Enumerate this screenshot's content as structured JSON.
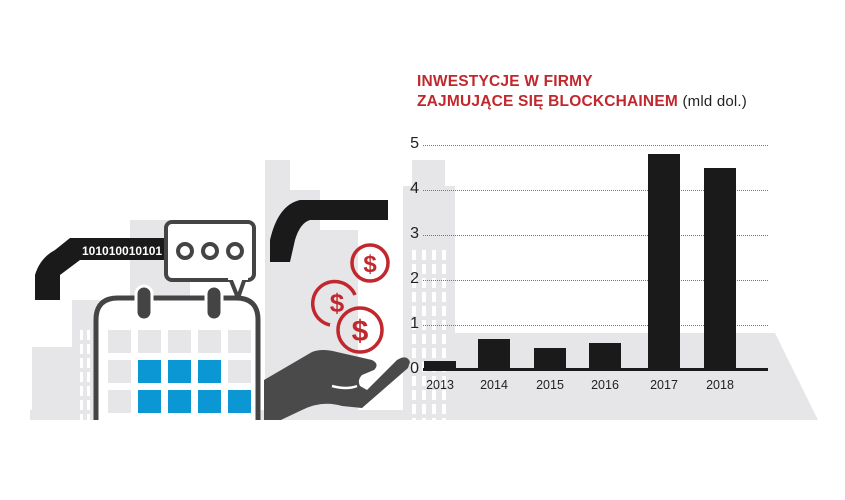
{
  "chart_data": {
    "type": "bar",
    "title": "INWESTYCJE W FIRMY ZAJMUJĄCE SIĘ BLOCKCHAINEM",
    "title_lines": [
      "INWESTYCJE W FIRMY",
      "ZAJMUJĄCE SIĘ BLOCKCHAINEM"
    ],
    "unit": "(mld dol.)",
    "xlabel": "",
    "ylabel": "mld dol.",
    "categories": [
      "2013",
      "2014",
      "2015",
      "2016",
      "2017",
      "2018"
    ],
    "values": [
      0.2,
      0.7,
      0.5,
      0.6,
      4.8,
      4.5
    ],
    "yticks": [
      "0",
      "1",
      "2",
      "3",
      "4",
      "5"
    ],
    "ylim": [
      0,
      5
    ],
    "grid": true,
    "grid_style": "dotted",
    "legend": null,
    "colors": {
      "title": "#c0282d",
      "bars": "#1a1a1a",
      "accent_blue": "#0a97d4",
      "coin_red": "#c0282d",
      "background_shapes": "#e6e6e8"
    }
  },
  "illustration": {
    "binary_text": "101010010101",
    "speech_bubble_icon": "ellipsis-speech-bubble",
    "coin_symbol": "$",
    "elements": [
      "city-skyline",
      "data-pipe",
      "calendar",
      "hand",
      "dollar-coins"
    ]
  }
}
